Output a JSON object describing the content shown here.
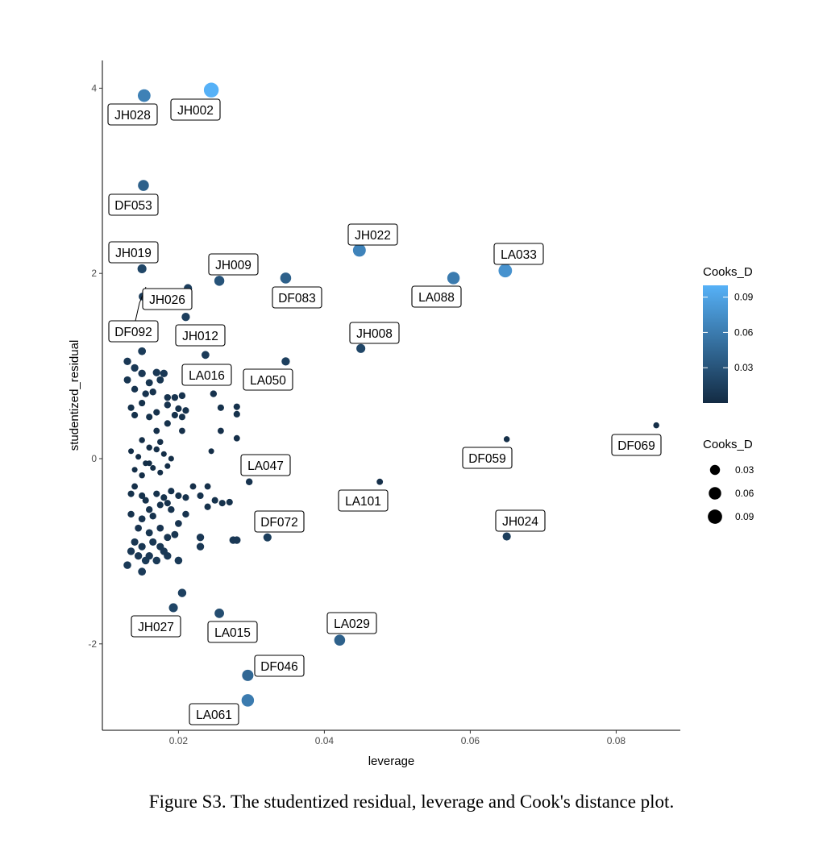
{
  "chart_data": {
    "type": "scatter",
    "xlabel": "leverage",
    "ylabel": "studentized_residual",
    "xlim": [
      0.01,
      0.09
    ],
    "ylim": [
      -2.9,
      4.3
    ],
    "x_ticks": [
      0.02,
      0.04,
      0.06,
      0.08
    ],
    "x_tick_labels": [
      "0.02",
      "0.04",
      "0.06",
      "0.08"
    ],
    "y_ticks": [
      -2,
      0,
      2,
      4
    ],
    "y_tick_labels": [
      "-2",
      "0",
      "2",
      "4"
    ],
    "grid": false,
    "legend_position": "right",
    "color_legend": {
      "title": "Cooks_D",
      "breaks": [
        0.03,
        0.06,
        0.09
      ],
      "labels": [
        "0.03",
        "0.06",
        "0.09"
      ],
      "range": [
        0.0,
        0.1
      ],
      "low_color": "#132B43",
      "high_color": "#56B1F7"
    },
    "size_legend": {
      "title": "Cooks_D",
      "breaks": [
        0.03,
        0.06,
        0.09
      ],
      "labels": [
        "0.03",
        "0.06",
        "0.09"
      ]
    },
    "labeled_points": [
      {
        "label": "JH028",
        "x": 0.0153,
        "y": 3.92,
        "cooks_d": 0.064
      },
      {
        "label": "JH002",
        "x": 0.0245,
        "y": 3.98,
        "cooks_d": 0.1
      },
      {
        "label": "DF053",
        "x": 0.0152,
        "y": 2.95,
        "cooks_d": 0.04
      },
      {
        "label": "JH019",
        "x": 0.015,
        "y": 2.05,
        "cooks_d": 0.02
      },
      {
        "label": "JH022",
        "x": 0.0448,
        "y": 2.25,
        "cooks_d": 0.066
      },
      {
        "label": "LA033",
        "x": 0.0648,
        "y": 2.03,
        "cooks_d": 0.077
      },
      {
        "label": "JH009",
        "x": 0.0256,
        "y": 1.92,
        "cooks_d": 0.03
      },
      {
        "label": "DF083",
        "x": 0.0347,
        "y": 1.95,
        "cooks_d": 0.04
      },
      {
        "label": "LA088",
        "x": 0.0577,
        "y": 1.95,
        "cooks_d": 0.06
      },
      {
        "label": "JH026",
        "x": 0.0213,
        "y": 1.84,
        "cooks_d": 0.015
      },
      {
        "label": "DF092",
        "x": 0.0151,
        "y": 1.75,
        "cooks_d": 0.013
      },
      {
        "label": "JH012",
        "x": 0.021,
        "y": 1.53,
        "cooks_d": 0.015
      },
      {
        "label": "JH008",
        "x": 0.045,
        "y": 1.19,
        "cooks_d": 0.02
      },
      {
        "label": "LA016",
        "x": 0.0237,
        "y": 1.12,
        "cooks_d": 0.012
      },
      {
        "label": "LA050",
        "x": 0.0347,
        "y": 1.05,
        "cooks_d": 0.015
      },
      {
        "label": "DF069",
        "x": 0.0855,
        "y": 0.36,
        "cooks_d": 0.003
      },
      {
        "label": "DF059",
        "x": 0.065,
        "y": 0.21,
        "cooks_d": 0.003
      },
      {
        "label": "LA047",
        "x": 0.0297,
        "y": -0.25,
        "cooks_d": 0.006
      },
      {
        "label": "LA101",
        "x": 0.0476,
        "y": -0.25,
        "cooks_d": 0.004
      },
      {
        "label": "DF072",
        "x": 0.0322,
        "y": -0.85,
        "cooks_d": 0.014
      },
      {
        "label": "JH024",
        "x": 0.065,
        "y": -0.84,
        "cooks_d": 0.014
      },
      {
        "label": "JH027",
        "x": 0.0193,
        "y": -1.61,
        "cooks_d": 0.02
      },
      {
        "label": "LA015",
        "x": 0.0256,
        "y": -1.67,
        "cooks_d": 0.025
      },
      {
        "label": "LA029",
        "x": 0.0421,
        "y": -1.96,
        "cooks_d": 0.04
      },
      {
        "label": "DF046",
        "x": 0.0295,
        "y": -2.34,
        "cooks_d": 0.045
      },
      {
        "label": "LA061",
        "x": 0.0295,
        "y": -2.61,
        "cooks_d": 0.06
      }
    ],
    "unlabeled_points": [
      {
        "x": 0.013,
        "y": 1.05,
        "cooks_d": 0.01
      },
      {
        "x": 0.014,
        "y": 0.98,
        "cooks_d": 0.01
      },
      {
        "x": 0.015,
        "y": 1.16,
        "cooks_d": 0.012
      },
      {
        "x": 0.013,
        "y": 0.85,
        "cooks_d": 0.008
      },
      {
        "x": 0.015,
        "y": 0.92,
        "cooks_d": 0.01
      },
      {
        "x": 0.016,
        "y": 0.82,
        "cooks_d": 0.008
      },
      {
        "x": 0.017,
        "y": 0.93,
        "cooks_d": 0.01
      },
      {
        "x": 0.018,
        "y": 0.92,
        "cooks_d": 0.01
      },
      {
        "x": 0.0175,
        "y": 0.85,
        "cooks_d": 0.008
      },
      {
        "x": 0.014,
        "y": 0.75,
        "cooks_d": 0.006
      },
      {
        "x": 0.0155,
        "y": 0.7,
        "cooks_d": 0.006
      },
      {
        "x": 0.0165,
        "y": 0.72,
        "cooks_d": 0.006
      },
      {
        "x": 0.0185,
        "y": 0.66,
        "cooks_d": 0.006
      },
      {
        "x": 0.0195,
        "y": 0.66,
        "cooks_d": 0.006
      },
      {
        "x": 0.0205,
        "y": 0.68,
        "cooks_d": 0.006
      },
      {
        "x": 0.015,
        "y": 0.6,
        "cooks_d": 0.005
      },
      {
        "x": 0.0185,
        "y": 0.58,
        "cooks_d": 0.006
      },
      {
        "x": 0.02,
        "y": 0.54,
        "cooks_d": 0.005
      },
      {
        "x": 0.021,
        "y": 0.52,
        "cooks_d": 0.005
      },
      {
        "x": 0.0135,
        "y": 0.55,
        "cooks_d": 0.005
      },
      {
        "x": 0.0195,
        "y": 0.47,
        "cooks_d": 0.005
      },
      {
        "x": 0.0205,
        "y": 0.45,
        "cooks_d": 0.005
      },
      {
        "x": 0.017,
        "y": 0.5,
        "cooks_d": 0.005
      },
      {
        "x": 0.016,
        "y": 0.45,
        "cooks_d": 0.005
      },
      {
        "x": 0.014,
        "y": 0.47,
        "cooks_d": 0.005
      },
      {
        "x": 0.0185,
        "y": 0.38,
        "cooks_d": 0.005
      },
      {
        "x": 0.017,
        "y": 0.3,
        "cooks_d": 0.004
      },
      {
        "x": 0.0205,
        "y": 0.3,
        "cooks_d": 0.004
      },
      {
        "x": 0.0175,
        "y": 0.18,
        "cooks_d": 0.003
      },
      {
        "x": 0.015,
        "y": 0.2,
        "cooks_d": 0.003
      },
      {
        "x": 0.016,
        "y": 0.12,
        "cooks_d": 0.003
      },
      {
        "x": 0.017,
        "y": 0.1,
        "cooks_d": 0.003
      },
      {
        "x": 0.018,
        "y": 0.05,
        "cooks_d": 0.002
      },
      {
        "x": 0.019,
        "y": 0.0,
        "cooks_d": 0.002
      },
      {
        "x": 0.0135,
        "y": 0.08,
        "cooks_d": 0.002
      },
      {
        "x": 0.0145,
        "y": 0.02,
        "cooks_d": 0.002
      },
      {
        "x": 0.0155,
        "y": -0.05,
        "cooks_d": 0.002
      },
      {
        "x": 0.0165,
        "y": -0.1,
        "cooks_d": 0.002
      },
      {
        "x": 0.014,
        "y": -0.12,
        "cooks_d": 0.002
      },
      {
        "x": 0.0175,
        "y": -0.15,
        "cooks_d": 0.002
      },
      {
        "x": 0.015,
        "y": -0.18,
        "cooks_d": 0.003
      },
      {
        "x": 0.016,
        "y": -0.05,
        "cooks_d": 0.002
      },
      {
        "x": 0.0185,
        "y": -0.08,
        "cooks_d": 0.002
      },
      {
        "x": 0.014,
        "y": -0.3,
        "cooks_d": 0.004
      },
      {
        "x": 0.0135,
        "y": -0.38,
        "cooks_d": 0.005
      },
      {
        "x": 0.015,
        "y": -0.4,
        "cooks_d": 0.005
      },
      {
        "x": 0.0155,
        "y": -0.45,
        "cooks_d": 0.005
      },
      {
        "x": 0.016,
        "y": -0.55,
        "cooks_d": 0.006
      },
      {
        "x": 0.017,
        "y": -0.38,
        "cooks_d": 0.005
      },
      {
        "x": 0.018,
        "y": -0.42,
        "cooks_d": 0.005
      },
      {
        "x": 0.019,
        "y": -0.35,
        "cooks_d": 0.005
      },
      {
        "x": 0.02,
        "y": -0.4,
        "cooks_d": 0.005
      },
      {
        "x": 0.021,
        "y": -0.42,
        "cooks_d": 0.005
      },
      {
        "x": 0.0175,
        "y": -0.5,
        "cooks_d": 0.005
      },
      {
        "x": 0.0185,
        "y": -0.48,
        "cooks_d": 0.005
      },
      {
        "x": 0.0135,
        "y": -0.6,
        "cooks_d": 0.006
      },
      {
        "x": 0.015,
        "y": -0.65,
        "cooks_d": 0.007
      },
      {
        "x": 0.0165,
        "y": -0.62,
        "cooks_d": 0.006
      },
      {
        "x": 0.019,
        "y": -0.55,
        "cooks_d": 0.006
      },
      {
        "x": 0.02,
        "y": -0.7,
        "cooks_d": 0.007
      },
      {
        "x": 0.021,
        "y": -0.6,
        "cooks_d": 0.006
      },
      {
        "x": 0.023,
        "y": -0.4,
        "cooks_d": 0.005
      },
      {
        "x": 0.024,
        "y": -0.3,
        "cooks_d": 0.004
      },
      {
        "x": 0.025,
        "y": -0.45,
        "cooks_d": 0.005
      },
      {
        "x": 0.026,
        "y": -0.48,
        "cooks_d": 0.005
      },
      {
        "x": 0.022,
        "y": -0.3,
        "cooks_d": 0.004
      },
      {
        "x": 0.024,
        "y": -0.52,
        "cooks_d": 0.005
      },
      {
        "x": 0.0145,
        "y": -0.75,
        "cooks_d": 0.007
      },
      {
        "x": 0.016,
        "y": -0.8,
        "cooks_d": 0.008
      },
      {
        "x": 0.0175,
        "y": -0.75,
        "cooks_d": 0.007
      },
      {
        "x": 0.0185,
        "y": -0.85,
        "cooks_d": 0.008
      },
      {
        "x": 0.0195,
        "y": -0.82,
        "cooks_d": 0.008
      },
      {
        "x": 0.014,
        "y": -0.9,
        "cooks_d": 0.009
      },
      {
        "x": 0.015,
        "y": -0.95,
        "cooks_d": 0.009
      },
      {
        "x": 0.0165,
        "y": -0.9,
        "cooks_d": 0.009
      },
      {
        "x": 0.0175,
        "y": -0.95,
        "cooks_d": 0.009
      },
      {
        "x": 0.018,
        "y": -1.0,
        "cooks_d": 0.01
      },
      {
        "x": 0.0135,
        "y": -1.0,
        "cooks_d": 0.01
      },
      {
        "x": 0.0145,
        "y": -1.05,
        "cooks_d": 0.01
      },
      {
        "x": 0.016,
        "y": -1.05,
        "cooks_d": 0.01
      },
      {
        "x": 0.017,
        "y": -1.1,
        "cooks_d": 0.011
      },
      {
        "x": 0.0185,
        "y": -1.05,
        "cooks_d": 0.01
      },
      {
        "x": 0.02,
        "y": -1.1,
        "cooks_d": 0.011
      },
      {
        "x": 0.013,
        "y": -1.15,
        "cooks_d": 0.011
      },
      {
        "x": 0.015,
        "y": -1.22,
        "cooks_d": 0.012
      },
      {
        "x": 0.0155,
        "y": -1.1,
        "cooks_d": 0.011
      },
      {
        "x": 0.023,
        "y": -0.85,
        "cooks_d": 0.01
      },
      {
        "x": 0.023,
        "y": -0.95,
        "cooks_d": 0.01
      },
      {
        "x": 0.0205,
        "y": -1.45,
        "cooks_d": 0.016
      },
      {
        "x": 0.0275,
        "y": -0.88,
        "cooks_d": 0.01
      },
      {
        "x": 0.028,
        "y": -0.88,
        "cooks_d": 0.01
      },
      {
        "x": 0.0258,
        "y": 0.55,
        "cooks_d": 0.005
      },
      {
        "x": 0.0248,
        "y": 0.7,
        "cooks_d": 0.006
      },
      {
        "x": 0.028,
        "y": 0.56,
        "cooks_d": 0.005
      },
      {
        "x": 0.028,
        "y": 0.48,
        "cooks_d": 0.005
      },
      {
        "x": 0.028,
        "y": 0.22,
        "cooks_d": 0.004
      },
      {
        "x": 0.0258,
        "y": 0.3,
        "cooks_d": 0.004
      },
      {
        "x": 0.0245,
        "y": 0.08,
        "cooks_d": 0.002
      },
      {
        "x": 0.027,
        "y": -0.47,
        "cooks_d": 0.005
      }
    ]
  },
  "caption": "Figure S3. The studentized residual, leverage and Cook's distance plot."
}
